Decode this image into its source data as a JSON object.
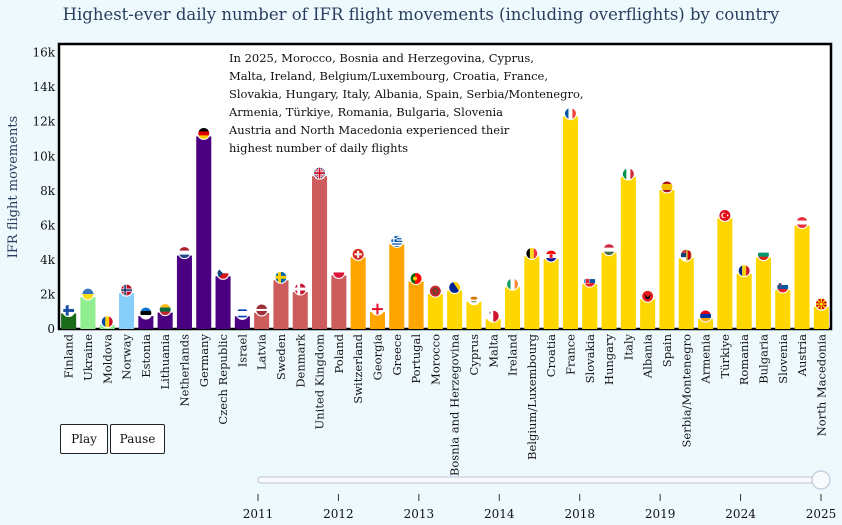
{
  "chart_data": {
    "type": "bar",
    "title": "Highest-ever daily number of IFR flight movements (including overflights) by country",
    "ylabel": "IFR flight movements",
    "xlabel": "",
    "ylim": [
      0,
      16500
    ],
    "yticks": [
      0,
      2000,
      4000,
      6000,
      8000,
      10000,
      12000,
      14000,
      16000
    ],
    "ytick_labels": [
      "0",
      "2k",
      "4k",
      "6k",
      "8k",
      "10k",
      "12k",
      "14k",
      "16k"
    ],
    "categories": [
      "Finland",
      "Ukraine",
      "Moldova",
      "Norway",
      "Estonia",
      "Lithuania",
      "Netherlands",
      "Germany",
      "Czech Republic",
      "Israel",
      "Latvia",
      "Sweden",
      "Denmark",
      "United Kingdom",
      "Poland",
      "Switzerland",
      "Georgia",
      "Greece",
      "Portugal",
      "Morocco",
      "Bosnia and Herzegovina",
      "Cyprus",
      "Malta",
      "Ireland",
      "Belgium/Luxembourg",
      "Croatia",
      "France",
      "Slovakia",
      "Hungary",
      "Italy",
      "Albania",
      "Spain",
      "Serbia/Montenegro",
      "Armenia",
      "Türkiye",
      "Romania",
      "Bulgaria",
      "Slovenia",
      "Austria",
      "North Macedonia"
    ],
    "values": [
      900,
      1850,
      250,
      2080,
      750,
      950,
      4250,
      11150,
      3050,
      730,
      930,
      2820,
      2140,
      8850,
      3100,
      4150,
      980,
      4900,
      2750,
      2020,
      2230,
      1580,
      570,
      2420,
      4200,
      4050,
      12300,
      2600,
      4420,
      8800,
      1720,
      8050,
      4100,
      580,
      6400,
      3200,
      4130,
      2260,
      5990,
      1270
    ],
    "bar_colors": [
      "#1a6b1a",
      "#90ee90",
      "#90ee90",
      "#87cefa",
      "#4b0082",
      "#4b0082",
      "#4b0082",
      "#4b0082",
      "#4b0082",
      "#4b0082",
      "#cd5c5c",
      "#cd5c5c",
      "#cd5c5c",
      "#cd5c5c",
      "#cd5c5c",
      "#ffa500",
      "#ffa500",
      "#ffa500",
      "#ffa500",
      "#ffd700",
      "#ffd700",
      "#ffd700",
      "#ffd700",
      "#ffd700",
      "#ffd700",
      "#ffd700",
      "#ffd700",
      "#ffd700",
      "#ffd700",
      "#ffd700",
      "#ffd700",
      "#ffd700",
      "#ffd700",
      "#ffd700",
      "#ffd700",
      "#ffd700",
      "#ffd700",
      "#ffd700",
      "#ffd700",
      "#ffd700"
    ],
    "flags": [
      "finland-flag-icon",
      "ukraine-flag-icon",
      "moldova-flag-icon",
      "norway-flag-icon",
      "estonia-flag-icon",
      "lithuania-flag-icon",
      "netherlands-flag-icon",
      "germany-flag-icon",
      "czech-republic-flag-icon",
      "israel-flag-icon",
      "latvia-flag-icon",
      "sweden-flag-icon",
      "denmark-flag-icon",
      "united-kingdom-flag-icon",
      "poland-flag-icon",
      "switzerland-flag-icon",
      "georgia-flag-icon",
      "greece-flag-icon",
      "portugal-flag-icon",
      "morocco-flag-icon",
      "bosnia-flag-icon",
      "cyprus-flag-icon",
      "malta-flag-icon",
      "ireland-flag-icon",
      "belgium-luxembourg-flag-icon",
      "croatia-flag-icon",
      "france-flag-icon",
      "slovakia-flag-icon",
      "hungary-flag-icon",
      "italy-flag-icon",
      "albania-flag-icon",
      "spain-flag-icon",
      "serbia-montenegro-flag-icon",
      "armenia-flag-icon",
      "turkiye-flag-icon",
      "romania-flag-icon",
      "bulgaria-flag-icon",
      "slovenia-flag-icon",
      "austria-flag-icon",
      "north-macedonia-flag-icon"
    ],
    "annotation": [
      "In 2025, Morocco, Bosnia and Herzegovina, Cyprus,",
      "Malta, Ireland, Belgium/Luxembourg, Croatia, France,",
      "Slovakia, Hungary, Italy, Albania, Spain, Serbia/Montenegro,",
      "Armenia, Türkiye, Romania, Bulgaria, Slovenia",
      "Austria and North Macedonia experienced their",
      "highest number of daily flights"
    ],
    "grid": false,
    "legend": "none"
  },
  "controls": {
    "play_label": "Play",
    "pause_label": "Pause"
  },
  "slider": {
    "steps": [
      "2011",
      "2012",
      "2013",
      "2014",
      "2018",
      "2019",
      "2024",
      "2025"
    ],
    "current": "2025"
  }
}
